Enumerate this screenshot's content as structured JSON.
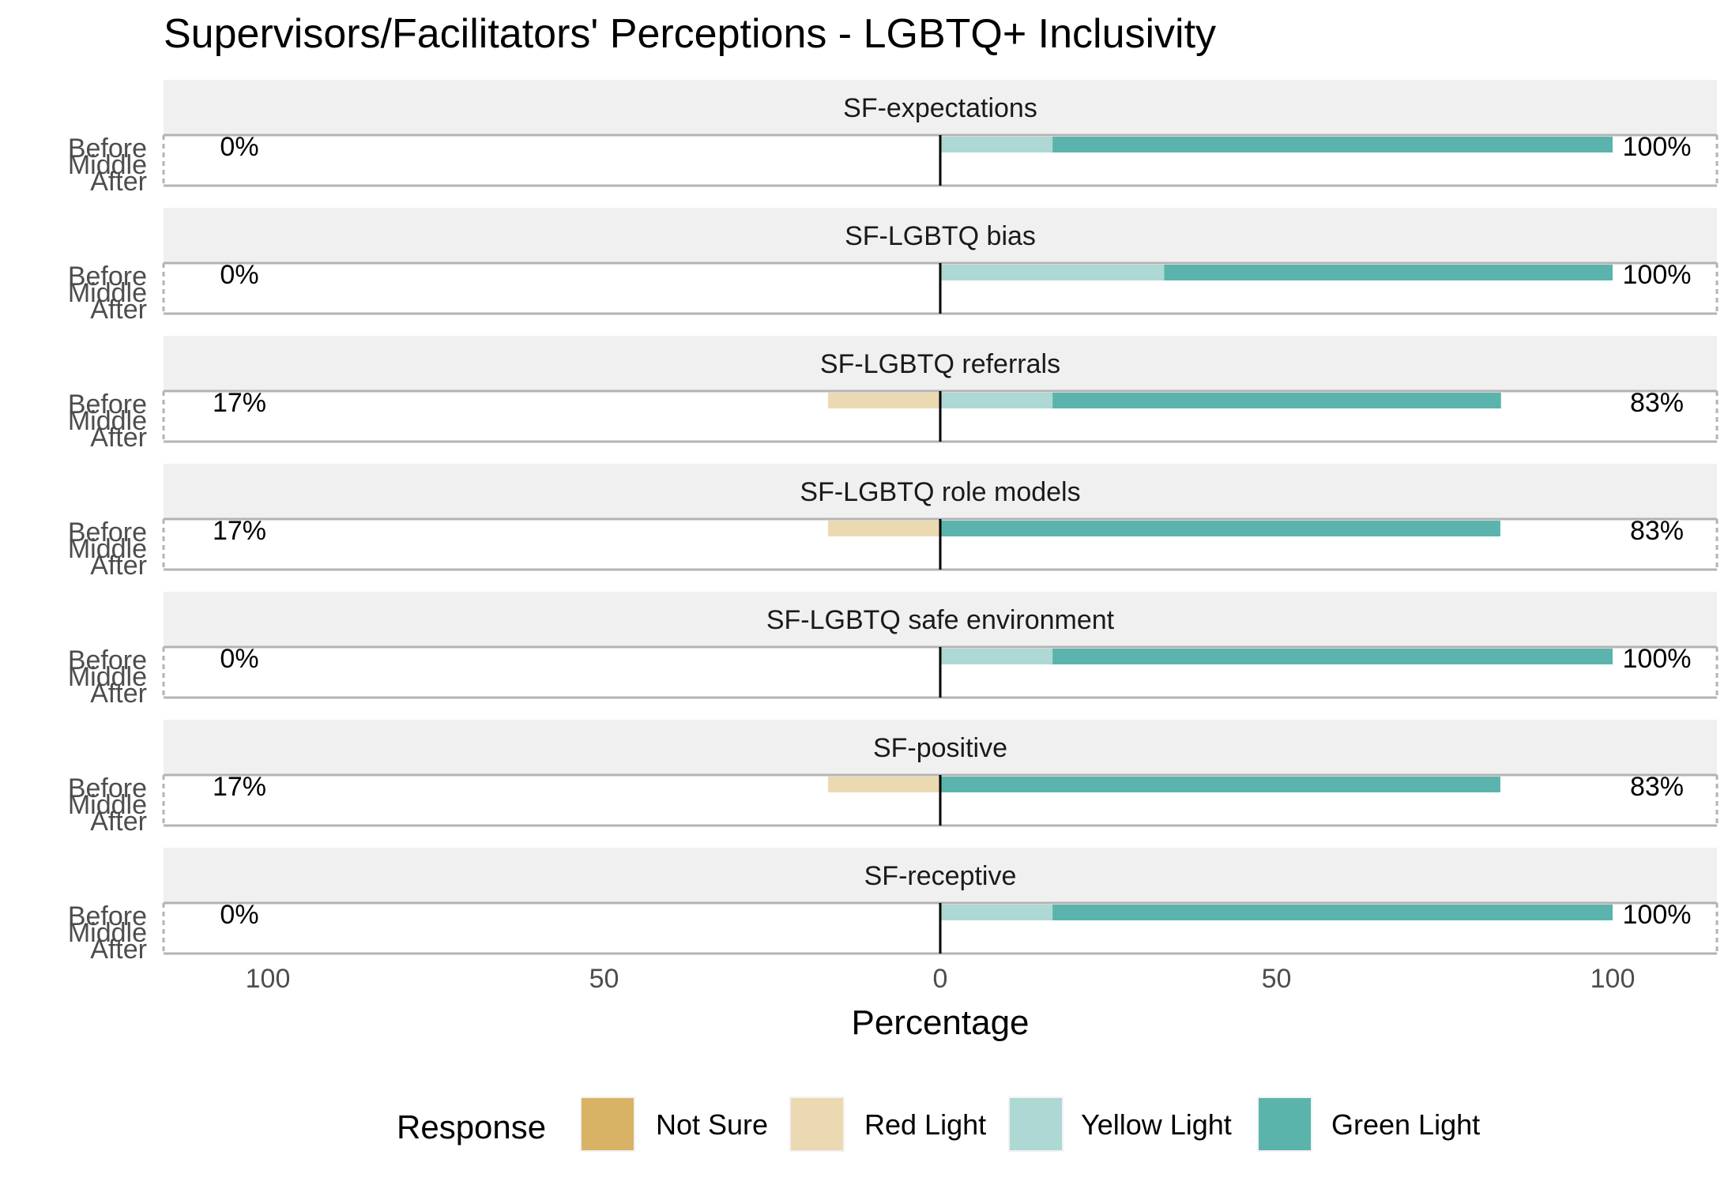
{
  "chart_data": {
    "type": "bar",
    "orientation": "horizontal",
    "stacking": "diverging",
    "title": "Supervisors/Facilitators' Perceptions - LGBTQ+ Inclusivity",
    "xlabel": "Percentage",
    "xlim": [
      -115,
      115
    ],
    "x_ticks": [
      -100,
      -50,
      0,
      50,
      100
    ],
    "x_tick_labels": [
      "100",
      "50",
      "0",
      "50",
      "100"
    ],
    "rows": [
      "Before",
      "Middle",
      "After"
    ],
    "legend": {
      "title": "Response",
      "position": "bottom",
      "items": [
        {
          "name": "Not Sure",
          "color": "#d8b365"
        },
        {
          "name": "Red Light",
          "color": "#ebd9b2"
        },
        {
          "name": "Yellow Light",
          "color": "#aed8d4"
        },
        {
          "name": "Green Light",
          "color": "#5ab4ac"
        }
      ]
    },
    "panels": [
      {
        "name": "SF-expectations",
        "row": "Before",
        "not_sure": 0,
        "red_light": 0,
        "yellow_light": 16.7,
        "green_light": 83.3,
        "left_label": "0%",
        "right_label": "100%"
      },
      {
        "name": "SF-LGBTQ bias",
        "row": "Before",
        "not_sure": 0,
        "red_light": 0,
        "yellow_light": 33.3,
        "green_light": 66.7,
        "left_label": "0%",
        "right_label": "100%"
      },
      {
        "name": "SF-LGBTQ referrals",
        "row": "Before",
        "not_sure": 0,
        "red_light": 16.7,
        "yellow_light": 16.7,
        "green_light": 66.7,
        "left_label": "17%",
        "right_label": "83%"
      },
      {
        "name": "SF-LGBTQ role models",
        "row": "Before",
        "not_sure": 0,
        "red_light": 16.7,
        "yellow_light": 0,
        "green_light": 83.3,
        "left_label": "17%",
        "right_label": "83%"
      },
      {
        "name": "SF-LGBTQ safe environment",
        "row": "Before",
        "not_sure": 0,
        "red_light": 0,
        "yellow_light": 16.7,
        "green_light": 83.3,
        "left_label": "0%",
        "right_label": "100%"
      },
      {
        "name": "SF-positive",
        "row": "Before",
        "not_sure": 0,
        "red_light": 16.7,
        "yellow_light": 0,
        "green_light": 83.3,
        "left_label": "17%",
        "right_label": "83%"
      },
      {
        "name": "SF-receptive",
        "row": "Before",
        "not_sure": 0,
        "red_light": 0,
        "yellow_light": 16.7,
        "green_light": 83.3,
        "left_label": "0%",
        "right_label": "100%"
      }
    ]
  }
}
